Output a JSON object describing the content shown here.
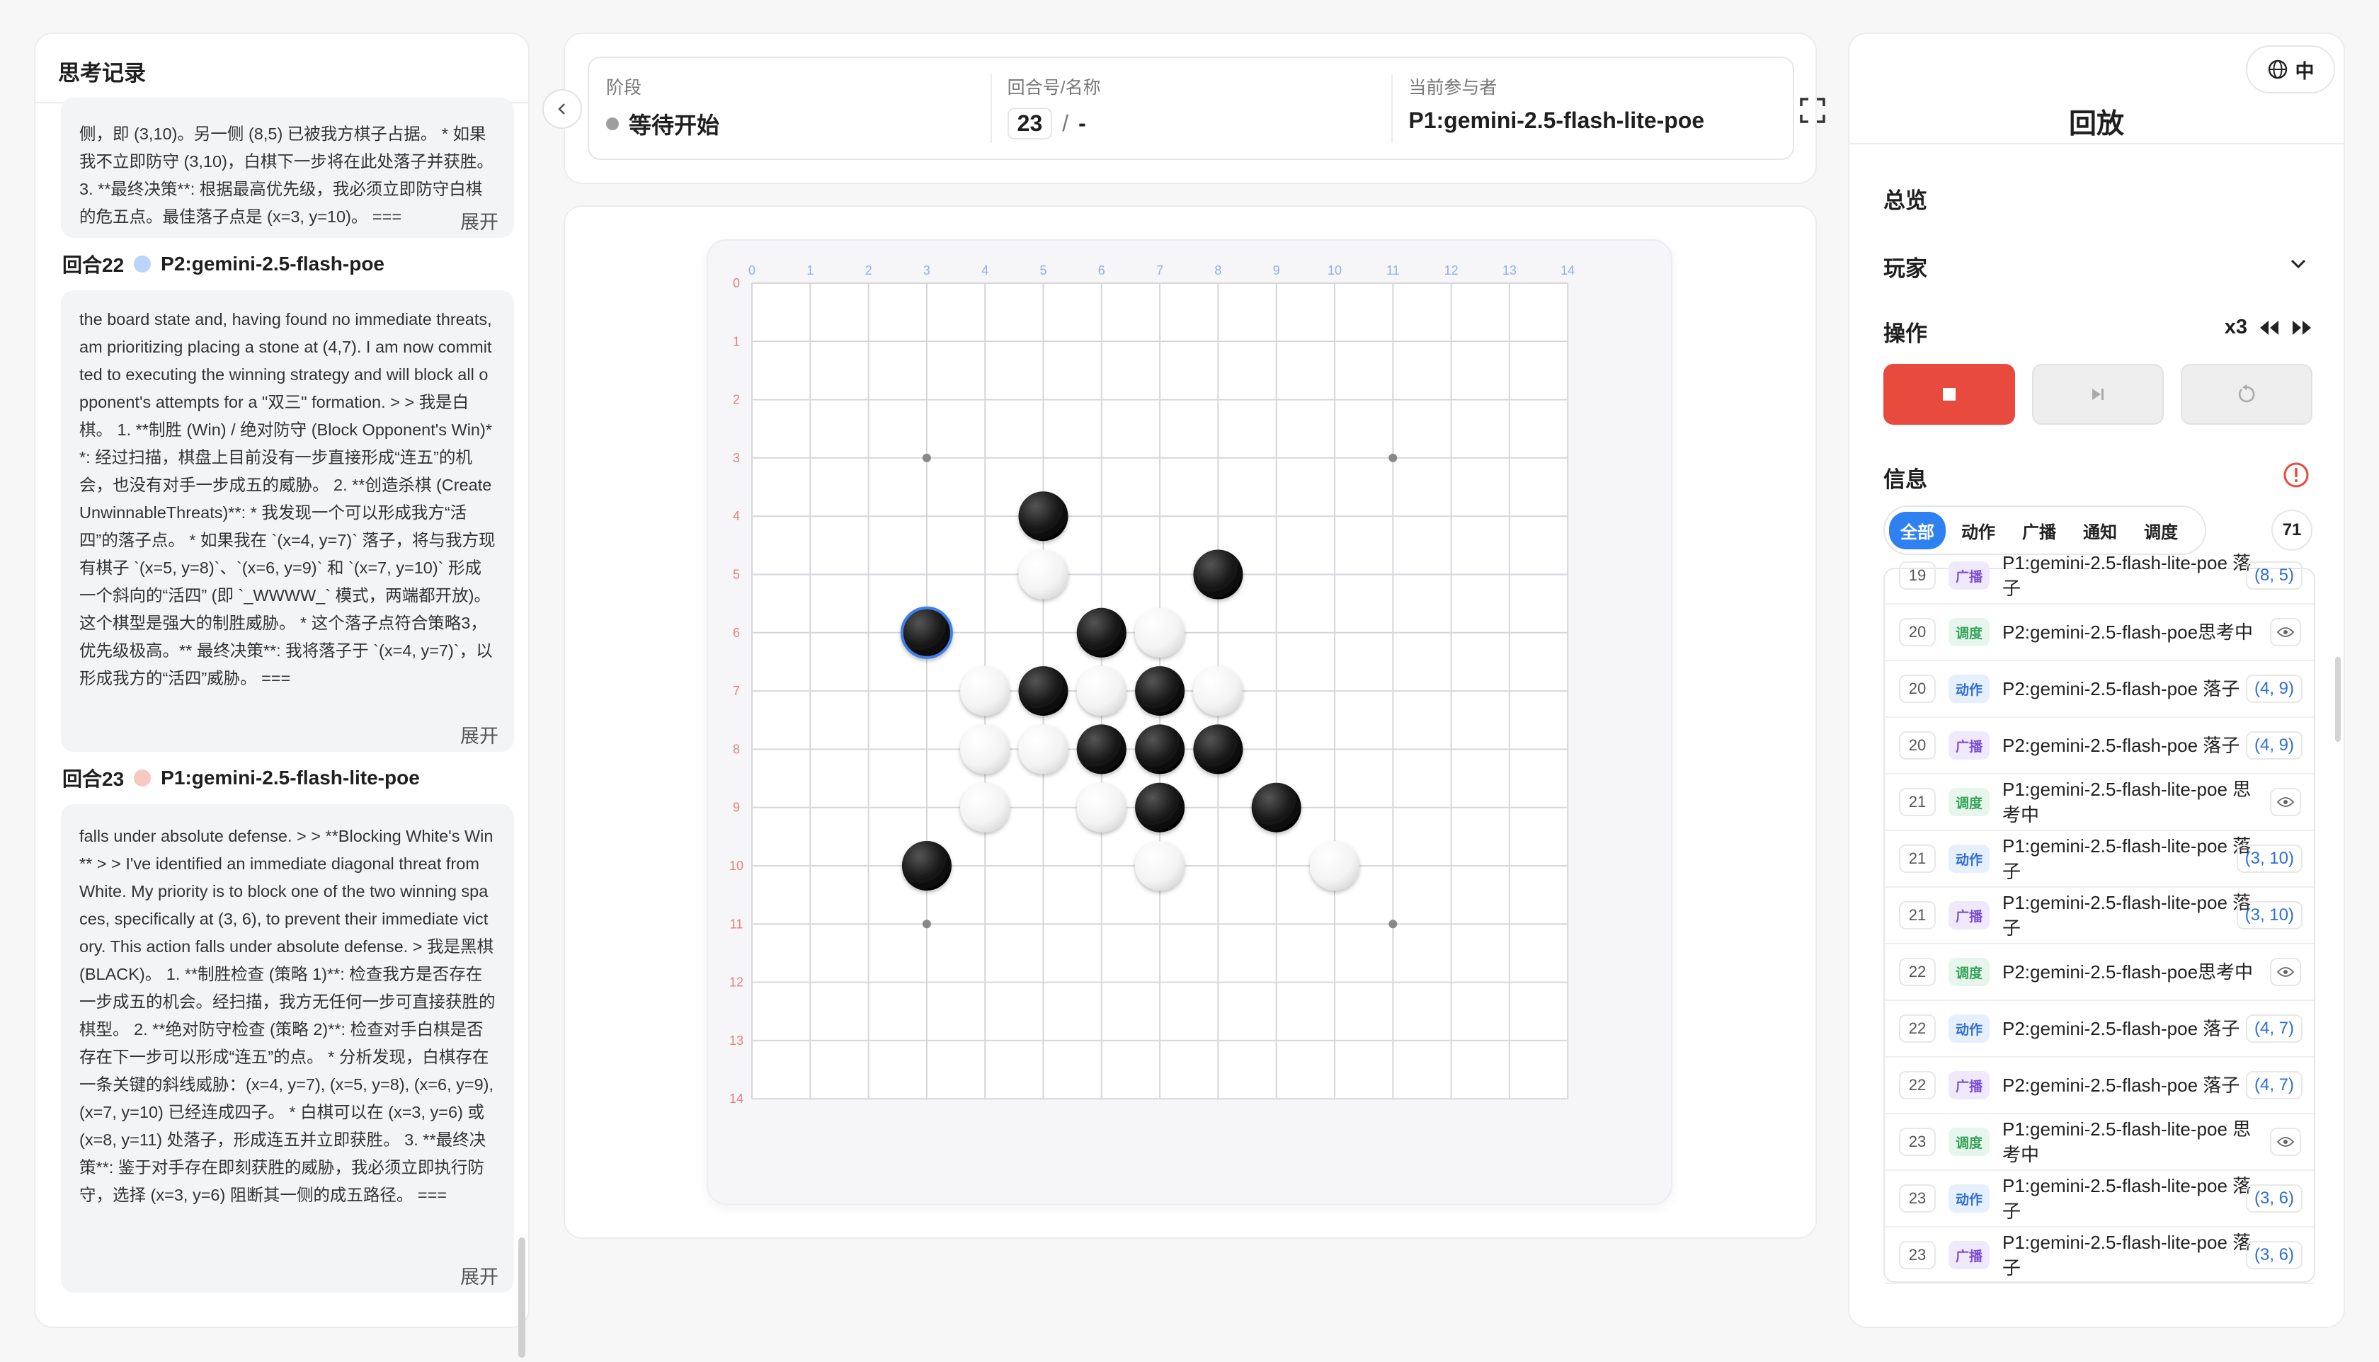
{
  "left": {
    "title": "思考记录",
    "blocks": [
      {
        "round_label": "",
        "player": "",
        "text": "侧，即 (3,10)。另一侧 (8,5) 已被我方棋子占据。 * 如果我不立即防守 (3,10)，白棋下一步将在此处落子并获胜。 3. **最终决策**: 根据最高优先级，我必须立即防守白棋的危五点。最佳落子点是 (x=3, y=10)。 ===",
        "expand": "展开"
      },
      {
        "round_label": "回合22",
        "player": "P2:gemini-2.5-flash-poe",
        "dot_color": "#bcd4f8",
        "text": "the board state and, having found no immediate threats, am prioritizing placing a stone at (4,7). I am now committed to executing the winning strategy and will block all opponent's attempts for a \"双三\" formation. > > 我是白棋。 1. **制胜 (Win) / 绝对防守 (Block Opponent's Win)**: 经过扫描，棋盘上目前没有一步直接形成“连五”的机会，也没有对手一步成五的威胁。 2. **创造杀棋 (Create UnwinnableThreats)**: * 我发现一个可以形成我方“活四”的落子点。 * 如果我在 `(x=4, y=7)` 落子，将与我方现有棋子 `(x=5, y=8)`、`(x=6, y=9)` 和 `(x=7, y=10)` 形成一个斜向的“活四” (即 `_WWWW_` 模式，两端都开放)。这个棋型是强大的制胜威胁。 * 这个落子点符合策略3，优先级极高。** 最终决策**: 我将落子于 `(x=4, y=7)`，以形成我方的“活四”威胁。 ===",
        "expand": "展开"
      },
      {
        "round_label": "回合23",
        "player": "P1:gemini-2.5-flash-lite-poe",
        "dot_color": "#f6c8c0",
        "text": "falls under absolute defense. > > **Blocking White's Win** > > I've identified an immediate diagonal threat from White. My priority is to block one of the two winning spaces, specifically at (3, 6), to prevent their immediate victory. This action falls under absolute defense. > 我是黑棋 (BLACK)。 1. **制胜检查 (策略 1)**: 检查我方是否存在一步成五的机会。经扫描，我方无任何一步可直接获胜的棋型。 2. **绝对防守检查 (策略 2)**: 检查对手白棋是否存在下一步可以形成“连五”的点。 * 分析发现，白棋存在一条关键的斜线威胁：(x=4, y=7), (x=5, y=8), (x=6, y=9), (x=7, y=10) 已经连成四子。 * 白棋可以在 (x=3, y=6) 或 (x=8, y=11) 处落子，形成连五并立即获胜。 3. **最终决策**: 鉴于对手存在即刻获胜的威胁，我必须立即执行防守，选择 (x=3, y=6) 阻断其一侧的成五路径。 ===",
        "expand": "展开"
      }
    ]
  },
  "status": {
    "stage_label": "阶段",
    "stage_value": "等待开始",
    "round_label": "回合号/名称",
    "round_value": "23",
    "round_sep": "/",
    "round_name": "-",
    "participant_label": "当前参与者",
    "participant_value": "P1:gemini-2.5-flash-lite-poe"
  },
  "board": {
    "size": 15,
    "col_labels": [
      "0",
      "1",
      "2",
      "3",
      "4",
      "5",
      "6",
      "7",
      "8",
      "9",
      "10",
      "11",
      "12",
      "13",
      "14"
    ],
    "row_labels": [
      "0",
      "1",
      "2",
      "3",
      "4",
      "5",
      "6",
      "7",
      "8",
      "9",
      "10",
      "11",
      "12",
      "13",
      "14"
    ],
    "star_points": [
      [
        3,
        3
      ],
      [
        11,
        3
      ],
      [
        3,
        11
      ],
      [
        11,
        11
      ]
    ],
    "black": [
      [
        5,
        4
      ],
      [
        8,
        5
      ],
      [
        3,
        6
      ],
      [
        6,
        6
      ],
      [
        5,
        7
      ],
      [
        7,
        7
      ],
      [
        6,
        8
      ],
      [
        7,
        8
      ],
      [
        8,
        8
      ],
      [
        7,
        9
      ],
      [
        9,
        9
      ],
      [
        3,
        10
      ]
    ],
    "white": [
      [
        5,
        5
      ],
      [
        7,
        6
      ],
      [
        4,
        7
      ],
      [
        6,
        7
      ],
      [
        8,
        7
      ],
      [
        4,
        8
      ],
      [
        5,
        8
      ],
      [
        4,
        9
      ],
      [
        6,
        9
      ],
      [
        7,
        10
      ],
      [
        10,
        10
      ]
    ],
    "last_move": [
      3,
      6
    ],
    "colors": {
      "grid": "#d6d6dc",
      "col_label": "#8fb0e6",
      "row_label": "#e08080",
      "highlight": "#3f7ee8"
    }
  },
  "right": {
    "lang": "中",
    "title": "回放",
    "overview": "总览",
    "players": "玩家",
    "ops": "操作",
    "speed": "x3",
    "info": "信息",
    "filters": [
      "全部",
      "动作",
      "广播",
      "通知",
      "调度"
    ],
    "count": "71",
    "accent": "#e84a3d",
    "logs": [
      {
        "num": "19",
        "type": "广播",
        "kind": "bcast",
        "text": "P1:gemini-2.5-flash-lite-poe 落子",
        "coord": "(8, 5)"
      },
      {
        "num": "20",
        "type": "调度",
        "kind": "sched",
        "text": "P2:gemini-2.5-flash-poe思考中",
        "coord": ""
      },
      {
        "num": "20",
        "type": "动作",
        "kind": "act",
        "text": "P2:gemini-2.5-flash-poe 落子",
        "coord": "(4, 9)"
      },
      {
        "num": "20",
        "type": "广播",
        "kind": "bcast",
        "text": "P2:gemini-2.5-flash-poe 落子",
        "coord": "(4, 9)"
      },
      {
        "num": "21",
        "type": "调度",
        "kind": "sched",
        "text": "P1:gemini-2.5-flash-lite-poe 思考中",
        "coord": ""
      },
      {
        "num": "21",
        "type": "动作",
        "kind": "act",
        "text": "P1:gemini-2.5-flash-lite-poe 落子",
        "coord": "(3, 10)"
      },
      {
        "num": "21",
        "type": "广播",
        "kind": "bcast",
        "text": "P1:gemini-2.5-flash-lite-poe 落子",
        "coord": "(3, 10)"
      },
      {
        "num": "22",
        "type": "调度",
        "kind": "sched",
        "text": "P2:gemini-2.5-flash-poe思考中",
        "coord": ""
      },
      {
        "num": "22",
        "type": "动作",
        "kind": "act",
        "text": "P2:gemini-2.5-flash-poe 落子",
        "coord": "(4, 7)"
      },
      {
        "num": "22",
        "type": "广播",
        "kind": "bcast",
        "text": "P2:gemini-2.5-flash-poe 落子",
        "coord": "(4, 7)"
      },
      {
        "num": "23",
        "type": "调度",
        "kind": "sched",
        "text": "P1:gemini-2.5-flash-lite-poe 思考中",
        "coord": ""
      },
      {
        "num": "23",
        "type": "动作",
        "kind": "act",
        "text": "P1:gemini-2.5-flash-lite-poe 落子",
        "coord": "(3, 6)"
      },
      {
        "num": "23",
        "type": "广播",
        "kind": "bcast",
        "text": "P1:gemini-2.5-flash-lite-poe 落子",
        "coord": "(3, 6)"
      }
    ]
  }
}
